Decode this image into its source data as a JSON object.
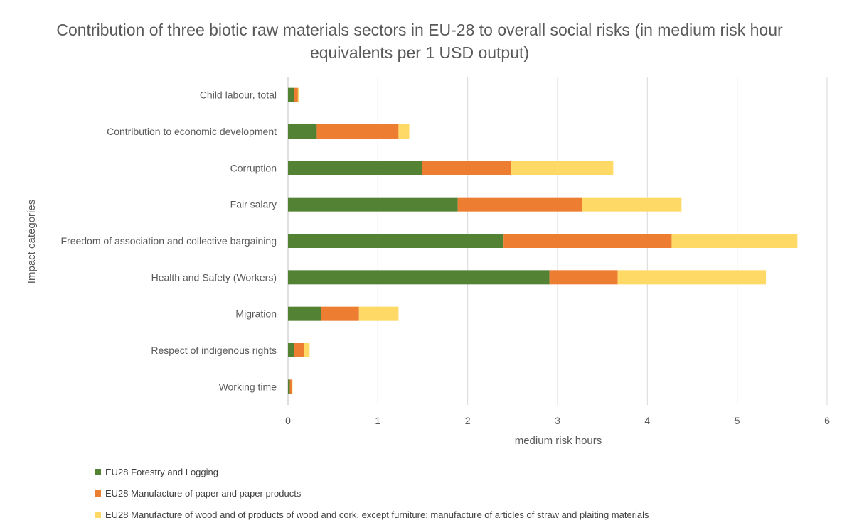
{
  "chart_data": {
    "type": "bar",
    "orientation": "horizontal",
    "stacked": true,
    "title": "Contribution of three biotic raw materials sectors in EU-28 to overall social risks (in medium risk hour equivalents per 1 USD output)",
    "xlabel": "medium risk hours",
    "ylabel": "Impact categories",
    "xlim": [
      0,
      6
    ],
    "xticks": [
      0,
      1,
      2,
      3,
      4,
      5,
      6
    ],
    "grid": "vertical",
    "legend_position": "bottom-left",
    "categories": [
      "Child labour, total",
      "Contribution to economic development",
      "Corruption",
      "Fair salary",
      "Freedom of association and collective bargaining",
      "Health and Safety (Workers)",
      "Migration",
      "Respect of indigenous rights",
      "Working time"
    ],
    "series": [
      {
        "name": "EU28 Forestry and Logging",
        "color": "#548235",
        "values": [
          0.07,
          0.32,
          1.49,
          1.89,
          2.4,
          2.91,
          0.37,
          0.07,
          0.02
        ]
      },
      {
        "name": "EU28 Manufacture of paper and paper products",
        "color": "#ed7d31",
        "values": [
          0.04,
          0.91,
          0.99,
          1.38,
          1.87,
          0.76,
          0.42,
          0.11,
          0.02
        ]
      },
      {
        "name": "EU28 Manufacture of wood and of products of wood and cork, except furniture; manufacture of articles of straw and plaiting materials",
        "color": "#ffd966",
        "values": [
          0.01,
          0.12,
          1.14,
          1.11,
          1.4,
          1.65,
          0.44,
          0.06,
          0.01
        ]
      }
    ]
  }
}
